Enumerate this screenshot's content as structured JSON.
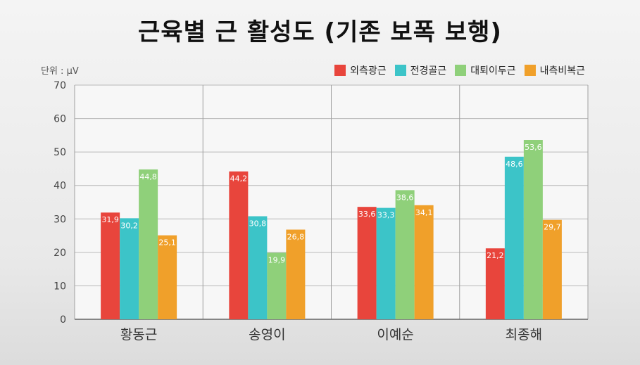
{
  "chart_data": {
    "type": "bar",
    "title": "근육별 근 활성도 (기존 보폭 보행)",
    "unit_label": "단위 : μV",
    "categories": [
      "황동근",
      "송영이",
      "이예순",
      "최종해"
    ],
    "series": [
      {
        "name": "외측광근",
        "color": "#e8453c",
        "values": [
          31.9,
          44.2,
          33.6,
          21.2
        ],
        "labels": [
          "31,9",
          "44,2",
          "33,6",
          "21,2"
        ]
      },
      {
        "name": "전경골근",
        "color": "#3cc4c8",
        "values": [
          30.2,
          30.8,
          33.3,
          48.6
        ],
        "labels": [
          "30,2",
          "30,8",
          "33,3",
          "48,6"
        ]
      },
      {
        "name": "대퇴이두근",
        "color": "#8fd07a",
        "values": [
          44.8,
          19.9,
          38.6,
          53.6
        ],
        "labels": [
          "44,8",
          "19,9",
          "38,6",
          "53,6"
        ]
      },
      {
        "name": "내측비복근",
        "color": "#f0a02a",
        "values": [
          25.1,
          26.8,
          34.1,
          29.7
        ],
        "labels": [
          "25,1",
          "26,8",
          "34,1",
          "29,7"
        ]
      }
    ],
    "ylim": [
      0,
      70
    ],
    "yticks": [
      0,
      10,
      20,
      30,
      40,
      50,
      60,
      70
    ],
    "grid": true,
    "legend": "top-right"
  }
}
